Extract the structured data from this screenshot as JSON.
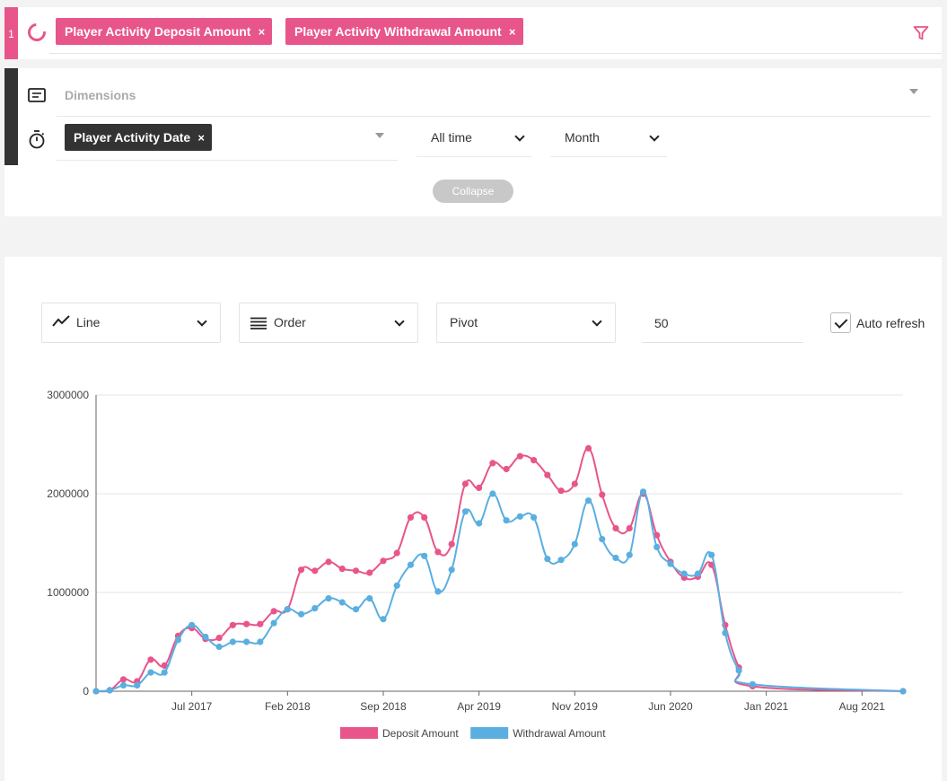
{
  "colors": {
    "accent": "#e8558a",
    "series2": "#5aafe0",
    "dark": "#333333"
  },
  "measures": {
    "index": "1",
    "chips": [
      {
        "label": "Player Activity Deposit Amount",
        "remove": "×"
      },
      {
        "label": "Player Activity Withdrawal Amount",
        "remove": "×"
      }
    ]
  },
  "dimensions": {
    "placeholder": "Dimensions",
    "time_dimension": {
      "label": "Player Activity Date",
      "remove": "×"
    },
    "date_range": "All time",
    "granularity": "Month",
    "collapse_label": "Collapse"
  },
  "toolbar": {
    "chart_type": "Line",
    "order": "Order",
    "pivot": "Pivot",
    "limit": "50",
    "auto_refresh": "Auto refresh",
    "auto_refresh_checked": true
  },
  "chart_data": {
    "type": "line",
    "x_ticks": [
      "Jul 2017",
      "Feb 2018",
      "Sep 2018",
      "Apr 2019",
      "Nov 2019",
      "Jun 2020",
      "Jan 2021",
      "Aug 2021"
    ],
    "y_ticks": [
      "0",
      "1000000",
      "2000000",
      "3000000"
    ],
    "ylim": [
      0,
      3000000
    ],
    "x": [
      "2016-12",
      "2017-01",
      "2017-02",
      "2017-03",
      "2017-04",
      "2017-05",
      "2017-06",
      "2017-07",
      "2017-08",
      "2017-09",
      "2017-10",
      "2017-11",
      "2017-12",
      "2018-01",
      "2018-02",
      "2018-03",
      "2018-04",
      "2018-05",
      "2018-06",
      "2018-07",
      "2018-08",
      "2018-09",
      "2018-10",
      "2018-11",
      "2018-12",
      "2019-01",
      "2019-02",
      "2019-03",
      "2019-04",
      "2019-05",
      "2019-06",
      "2019-07",
      "2019-08",
      "2019-09",
      "2019-10",
      "2019-11",
      "2019-12",
      "2020-01",
      "2020-02",
      "2020-03",
      "2020-04",
      "2020-05",
      "2020-06",
      "2020-07",
      "2020-08",
      "2020-09",
      "2020-10",
      "2020-11",
      "2020-12",
      "2021-11"
    ],
    "series": [
      {
        "name": "Deposit Amount",
        "color": "#e8558a",
        "values": [
          0,
          10000,
          120000,
          100000,
          320000,
          260000,
          560000,
          640000,
          530000,
          540000,
          670000,
          680000,
          680000,
          810000,
          830000,
          1230000,
          1220000,
          1310000,
          1240000,
          1220000,
          1200000,
          1320000,
          1400000,
          1760000,
          1760000,
          1410000,
          1490000,
          2100000,
          2060000,
          2310000,
          2250000,
          2380000,
          2340000,
          2190000,
          2030000,
          2100000,
          2460000,
          1990000,
          1650000,
          1650000,
          2000000,
          1580000,
          1310000,
          1150000,
          1160000,
          1280000,
          670000,
          240000,
          50000,
          0
        ]
      },
      {
        "name": "Withdrawal Amount",
        "color": "#5aafe0",
        "values": [
          0,
          10000,
          60000,
          60000,
          190000,
          190000,
          520000,
          670000,
          550000,
          450000,
          500000,
          500000,
          500000,
          690000,
          830000,
          780000,
          840000,
          940000,
          900000,
          830000,
          940000,
          730000,
          1070000,
          1280000,
          1370000,
          1010000,
          1230000,
          1820000,
          1700000,
          2000000,
          1730000,
          1770000,
          1760000,
          1340000,
          1330000,
          1490000,
          1930000,
          1540000,
          1350000,
          1380000,
          2020000,
          1460000,
          1290000,
          1190000,
          1190000,
          1380000,
          590000,
          210000,
          70000,
          0
        ]
      }
    ]
  }
}
